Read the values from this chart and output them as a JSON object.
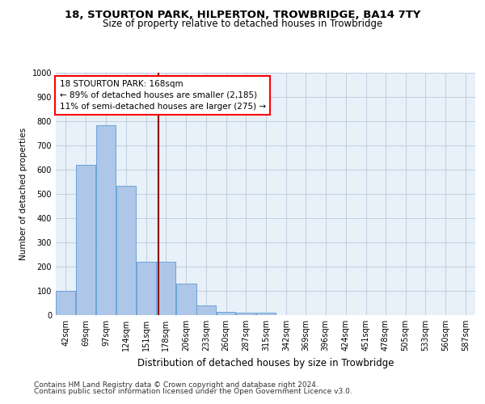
{
  "title1": "18, STOURTON PARK, HILPERTON, TROWBRIDGE, BA14 7TY",
  "title2": "Size of property relative to detached houses in Trowbridge",
  "xlabel": "Distribution of detached houses by size in Trowbridge",
  "ylabel": "Number of detached properties",
  "footer1": "Contains HM Land Registry data © Crown copyright and database right 2024.",
  "footer2": "Contains public sector information licensed under the Open Government Licence v3.0.",
  "annotation_line1": "18 STOURTON PARK: 168sqm",
  "annotation_line2": "← 89% of detached houses are smaller (2,185)",
  "annotation_line3": "11% of semi-detached houses are larger (275) →",
  "bar_labels": [
    "42sqm",
    "69sqm",
    "97sqm",
    "124sqm",
    "151sqm",
    "178sqm",
    "206sqm",
    "233sqm",
    "260sqm",
    "287sqm",
    "315sqm",
    "342sqm",
    "369sqm",
    "396sqm",
    "424sqm",
    "451sqm",
    "478sqm",
    "505sqm",
    "533sqm",
    "560sqm",
    "587sqm"
  ],
  "bar_values": [
    100,
    620,
    785,
    535,
    220,
    220,
    130,
    40,
    15,
    10,
    10,
    0,
    0,
    0,
    0,
    0,
    0,
    0,
    0,
    0,
    0
  ],
  "bin_edges": [
    28,
    55,
    83,
    110,
    138,
    165,
    192,
    220,
    247,
    274,
    301,
    329,
    356,
    383,
    410,
    438,
    465,
    492,
    519,
    547,
    574,
    601
  ],
  "bar_color": "#aec6e8",
  "bar_edge_color": "#5b9bd5",
  "vline_color": "#8b0000",
  "vline_x": 168,
  "ylim": [
    0,
    1000
  ],
  "yticks": [
    0,
    100,
    200,
    300,
    400,
    500,
    600,
    700,
    800,
    900,
    1000
  ],
  "grid_color": "#c0cfe0",
  "bg_color": "#e8f0f8",
  "title1_fontsize": 9.5,
  "title2_fontsize": 8.5,
  "annotation_fontsize": 7.5,
  "ylabel_fontsize": 7.5,
  "xlabel_fontsize": 8.5,
  "tick_fontsize": 7,
  "footer_fontsize": 6.5
}
